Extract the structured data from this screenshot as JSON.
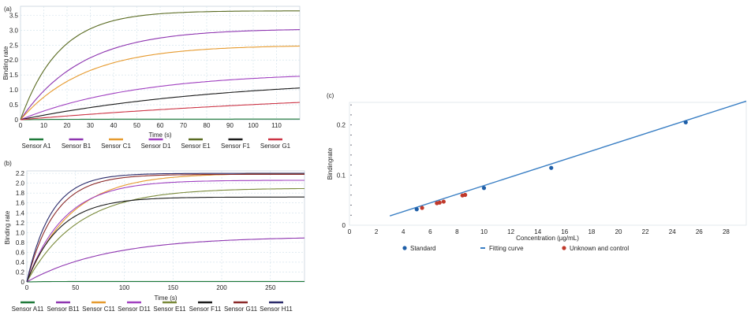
{
  "chart_data": [
    {
      "type": "line",
      "panel_label": "(a)",
      "xlabel": "Time (s)",
      "ylabel": "Binding rate",
      "xlim": [
        0,
        120
      ],
      "ylim": [
        0,
        3.8
      ],
      "xticks": [
        0,
        10,
        20,
        30,
        40,
        50,
        60,
        70,
        80,
        90,
        100,
        110
      ],
      "yticks": [
        0,
        0.5,
        1.0,
        1.5,
        2.0,
        2.5,
        3.0,
        3.5
      ],
      "ytick_labels": [
        "0",
        "0.5",
        "1.0",
        "1.5",
        "2.0",
        "2.5",
        "3.0",
        "3.5"
      ],
      "grid": true,
      "legend_position": "bottom",
      "series": [
        {
          "name": "Sensor A1",
          "color": "#1f7a3a",
          "a": 0.02,
          "k": 0.05
        },
        {
          "name": "Sensor B1",
          "color": "#8e35b0",
          "a": 3.05,
          "k": 0.038
        },
        {
          "name": "Sensor C1",
          "color": "#e69a2e",
          "a": 2.5,
          "k": 0.036
        },
        {
          "name": "Sensor D1",
          "color": "#a040c0",
          "a": 1.6,
          "k": 0.02
        },
        {
          "name": "Sensor E1",
          "color": "#5a6b22",
          "a": 3.65,
          "k": 0.06
        },
        {
          "name": "Sensor F1",
          "color": "#1a1a1a",
          "a": 1.45,
          "k": 0.011
        },
        {
          "name": "Sensor G1",
          "color": "#cc3344",
          "a": 1.2,
          "k": 0.0055
        }
      ]
    },
    {
      "type": "line",
      "panel_label": "(b)",
      "xlabel": "Time (s)",
      "ylabel": "Binding rate",
      "xlim": [
        0,
        285
      ],
      "ylim": [
        0,
        2.25
      ],
      "xticks": [
        0,
        50,
        100,
        150,
        200,
        250
      ],
      "yticks": [
        0,
        0.2,
        0.4,
        0.6,
        0.8,
        1.0,
        1.2,
        1.4,
        1.6,
        1.8,
        2.0,
        2.2
      ],
      "ytick_labels": [
        "0",
        "0.2",
        "0.4",
        "0.6",
        "0.8",
        "1.0",
        "1.2",
        "1.4",
        "1.6",
        "1.8",
        "2.0",
        "2.2"
      ],
      "grid": true,
      "legend_position": "bottom",
      "series": [
        {
          "name": "Sensor A11",
          "color": "#1f7a3a",
          "a": 0.01,
          "k": 0.05
        },
        {
          "name": "Sensor B11",
          "color": "#8e35b0",
          "a": 0.92,
          "k": 0.012
        },
        {
          "name": "Sensor C11",
          "color": "#e69a2e",
          "a": 2.2,
          "k": 0.022
        },
        {
          "name": "Sensor D11",
          "color": "#a040c0",
          "a": 2.06,
          "k": 0.026
        },
        {
          "name": "Sensor E11",
          "color": "#7a8a3a",
          "a": 1.9,
          "k": 0.019
        },
        {
          "name": "Sensor F11",
          "color": "#1a1a1a",
          "a": 1.72,
          "k": 0.03
        },
        {
          "name": "Sensor G11",
          "color": "#8b2a2a",
          "a": 2.18,
          "k": 0.035
        },
        {
          "name": "Sensor H11",
          "color": "#2a2a6a",
          "a": 2.2,
          "k": 0.04
        }
      ]
    },
    {
      "type": "scatter",
      "panel_label": "(c)",
      "xlabel": "Concentration (µg/mL)",
      "ylabel": "Bindingrate",
      "xlim": [
        0,
        29.5
      ],
      "ylim": [
        0,
        0.245
      ],
      "xticks": [
        0,
        2,
        4,
        6,
        8,
        10,
        12,
        14,
        16,
        18,
        20,
        22,
        24,
        26,
        28
      ],
      "yticks": [
        0,
        0.1,
        0.2
      ],
      "ytick_labels": [
        "0",
        "0.1",
        "0.2"
      ],
      "grid": false,
      "legend_position": "bottom",
      "fit_line": {
        "name": "Fitting curve",
        "color": "#3a7fc4",
        "x": [
          3,
          29.5
        ],
        "y": [
          0.0185,
          0.2475
        ]
      },
      "standards": {
        "name": "Standard",
        "color": "#1f5fa8",
        "x": [
          5,
          10,
          15,
          25
        ],
        "y": [
          0.0318,
          0.0742,
          0.1143,
          0.2052
        ]
      },
      "unknowns": {
        "name": "Unknown and control",
        "color": "#c0392b",
        "x": [
          5.4,
          6.5,
          6.7,
          7.0,
          8.4,
          8.6
        ],
        "y": [
          0.0345,
          0.0439,
          0.0451,
          0.047,
          0.0594,
          0.0605
        ]
      }
    }
  ]
}
